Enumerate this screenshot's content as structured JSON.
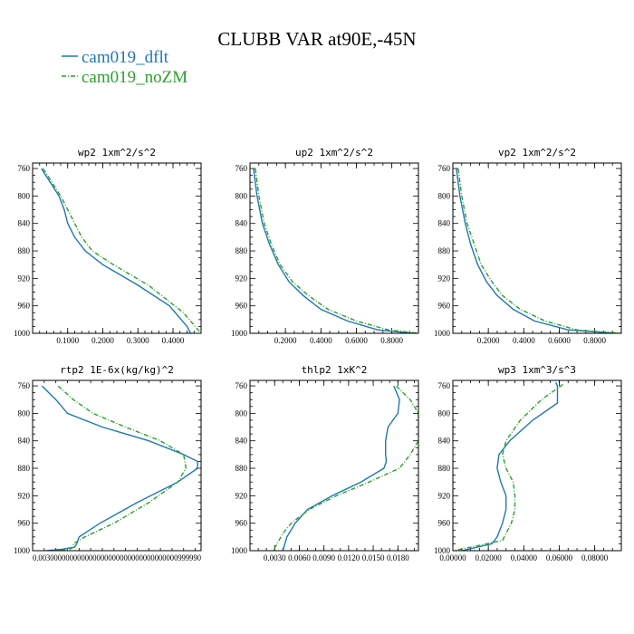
{
  "title": "CLUBB VAR at90E,-45N",
  "legend": [
    {
      "label": "cam019_dflt",
      "color": "#1f77b4",
      "dash": "solid"
    },
    {
      "label": "cam019_noZM",
      "color": "#2ca02c",
      "dash": "dashdot"
    }
  ],
  "chart_data": [
    {
      "type": "line",
      "title": "wp2   1xm^2/s^2",
      "xlim": [
        0,
        0.48
      ],
      "ylim": [
        1000,
        752
      ],
      "yticks": [
        760,
        800,
        840,
        880,
        920,
        960,
        1000
      ],
      "xticks": [
        0.1,
        0.2,
        0.3,
        0.4
      ],
      "xtick_labels": [
        "0.1000",
        "0.2000",
        "0.3000",
        "0.4000"
      ],
      "x_minor_step": 0.02,
      "series": [
        {
          "name": "cam019_dflt",
          "x": [
            0.025,
            0.05,
            0.075,
            0.09,
            0.1,
            0.12,
            0.15,
            0.2,
            0.3,
            0.39,
            0.44,
            0.45
          ],
          "y": [
            760,
            780,
            800,
            820,
            840,
            860,
            880,
            900,
            930,
            960,
            990,
            1000
          ]
        },
        {
          "name": "cam019_noZM",
          "x": [
            0.03,
            0.055,
            0.08,
            0.1,
            0.12,
            0.14,
            0.17,
            0.23,
            0.33,
            0.43,
            0.48
          ],
          "y": [
            760,
            780,
            800,
            820,
            840,
            860,
            880,
            900,
            930,
            970,
            1000
          ]
        }
      ]
    },
    {
      "type": "line",
      "title": "up2   1xm^2/s^2",
      "xlim": [
        0,
        0.95
      ],
      "ylim": [
        1000,
        752
      ],
      "yticks": [
        760,
        800,
        840,
        880,
        920,
        960,
        1000
      ],
      "xticks": [
        0.2,
        0.4,
        0.6,
        0.8
      ],
      "xtick_labels": [
        "0.2000",
        "0.4000",
        "0.6000",
        "0.8000"
      ],
      "x_minor_step": 0.05,
      "series": [
        {
          "name": "cam019_dflt",
          "x": [
            0.02,
            0.04,
            0.07,
            0.11,
            0.16,
            0.22,
            0.3,
            0.4,
            0.55,
            0.72,
            0.92
          ],
          "y": [
            760,
            800,
            840,
            870,
            900,
            925,
            945,
            965,
            982,
            995,
            1000
          ]
        },
        {
          "name": "cam019_noZM",
          "x": [
            0.03,
            0.05,
            0.08,
            0.12,
            0.17,
            0.24,
            0.33,
            0.44,
            0.6,
            0.78,
            0.95
          ],
          "y": [
            760,
            800,
            840,
            870,
            900,
            925,
            945,
            965,
            982,
            995,
            1000
          ]
        }
      ]
    },
    {
      "type": "line",
      "title": "vp2   1xm^2/s^2",
      "xlim": [
        0,
        0.95
      ],
      "ylim": [
        1000,
        752
      ],
      "yticks": [
        760,
        800,
        840,
        880,
        920,
        960,
        1000
      ],
      "xticks": [
        0.2,
        0.4,
        0.6,
        0.8
      ],
      "xtick_labels": [
        "0.2000",
        "0.4000",
        "0.6000",
        "0.8000"
      ],
      "x_minor_step": 0.05,
      "series": [
        {
          "name": "cam019_dflt",
          "x": [
            0.02,
            0.04,
            0.07,
            0.1,
            0.14,
            0.19,
            0.25,
            0.34,
            0.46,
            0.65,
            0.92
          ],
          "y": [
            760,
            800,
            840,
            870,
            900,
            925,
            945,
            965,
            982,
            995,
            1000
          ]
        },
        {
          "name": "cam019_noZM",
          "x": [
            0.03,
            0.05,
            0.08,
            0.12,
            0.16,
            0.22,
            0.28,
            0.38,
            0.52,
            0.7,
            0.95
          ],
          "y": [
            760,
            800,
            840,
            870,
            900,
            925,
            945,
            965,
            982,
            995,
            1000
          ]
        }
      ]
    },
    {
      "type": "line",
      "title": "rtp2   1E-6x(kg/kg)^2",
      "xlim": [
        0.2,
        1.65
      ],
      "ylim": [
        1000,
        752
      ],
      "yticks": [
        760,
        800,
        840,
        880,
        920,
        960,
        1000
      ],
      "xticks": [],
      "xtick_labels": [],
      "xtick_text": "0.003000000000000000000000000000000000999990",
      "x_minor_step": 0.1,
      "series": [
        {
          "name": "cam019_dflt",
          "x": [
            0.28,
            0.4,
            0.5,
            0.8,
            1.2,
            1.5,
            1.62,
            1.62,
            1.45,
            1.1,
            0.78,
            0.6,
            0.58,
            0.56,
            0.45,
            0.32
          ],
          "y": [
            760,
            780,
            800,
            820,
            840,
            860,
            870,
            880,
            900,
            930,
            960,
            980,
            990,
            995,
            998,
            1000
          ]
        },
        {
          "name": "cam019_noZM",
          "x": [
            0.42,
            0.55,
            0.72,
            1.0,
            1.3,
            1.5,
            1.52,
            1.45,
            1.2,
            0.9,
            0.65,
            0.55,
            0.55,
            0.52,
            0.4,
            0.28
          ],
          "y": [
            760,
            780,
            800,
            820,
            840,
            860,
            880,
            900,
            930,
            960,
            980,
            990,
            995,
            998,
            1000,
            1002
          ]
        }
      ]
    },
    {
      "type": "line",
      "title": "thlp2   1xK^2",
      "xlim": [
        0,
        0.0205
      ],
      "ylim": [
        1000,
        752
      ],
      "yticks": [
        760,
        800,
        840,
        880,
        920,
        960,
        1000
      ],
      "xticks": [
        0.003,
        0.006,
        0.009,
        0.012,
        0.015,
        0.018
      ],
      "xtick_labels": [
        "0.0030",
        "0.0060",
        "0.0090",
        "0.0120",
        "0.0150",
        "0.0180"
      ],
      "x_minor_step": 0.001,
      "series": [
        {
          "name": "cam019_dflt",
          "x": [
            0.0175,
            0.0182,
            0.018,
            0.0168,
            0.0165,
            0.0165,
            0.0166,
            0.0163,
            0.0135,
            0.01,
            0.007,
            0.0055,
            0.0045,
            0.004
          ],
          "y": [
            760,
            780,
            800,
            820,
            840,
            860,
            870,
            880,
            900,
            920,
            940,
            960,
            980,
            1000
          ]
        },
        {
          "name": "cam019_noZM",
          "x": [
            0.0178,
            0.0195,
            0.0205,
            0.0205,
            0.0195,
            0.0182,
            0.0145,
            0.0105,
            0.0072,
            0.005,
            0.004,
            0.0033,
            0.0028
          ],
          "y": [
            760,
            780,
            800,
            840,
            860,
            880,
            900,
            920,
            940,
            960,
            975,
            990,
            1000
          ]
        }
      ]
    },
    {
      "type": "line",
      "title": "wp3   1xm^3/s^3",
      "xlim": [
        0,
        0.095
      ],
      "ylim": [
        1000,
        752
      ],
      "yticks": [
        760,
        800,
        840,
        880,
        920,
        960,
        1000
      ],
      "xticks": [
        0.0,
        0.02,
        0.04,
        0.06,
        0.08
      ],
      "xtick_labels": [
        "0.00000",
        "0.02000",
        "0.04000",
        "0.06000",
        "0.08000"
      ],
      "x_minor_step": 0.005,
      "series": [
        {
          "name": "cam019_dflt",
          "x": [
            0.058,
            0.059,
            0.059,
            0.045,
            0.032,
            0.026,
            0.025,
            0.027,
            0.03,
            0.03,
            0.028,
            0.025,
            0.022,
            0.005
          ],
          "y": [
            755,
            760,
            785,
            810,
            840,
            860,
            880,
            900,
            920,
            940,
            960,
            980,
            990,
            1000
          ]
        },
        {
          "name": "cam019_noZM",
          "x": [
            0.062,
            0.05,
            0.038,
            0.03,
            0.028,
            0.03,
            0.034,
            0.035,
            0.035,
            0.033,
            0.028,
            0.01,
            0.0
          ],
          "y": [
            758,
            780,
            810,
            840,
            860,
            880,
            900,
            920,
            940,
            960,
            985,
            995,
            1000
          ]
        }
      ]
    }
  ]
}
